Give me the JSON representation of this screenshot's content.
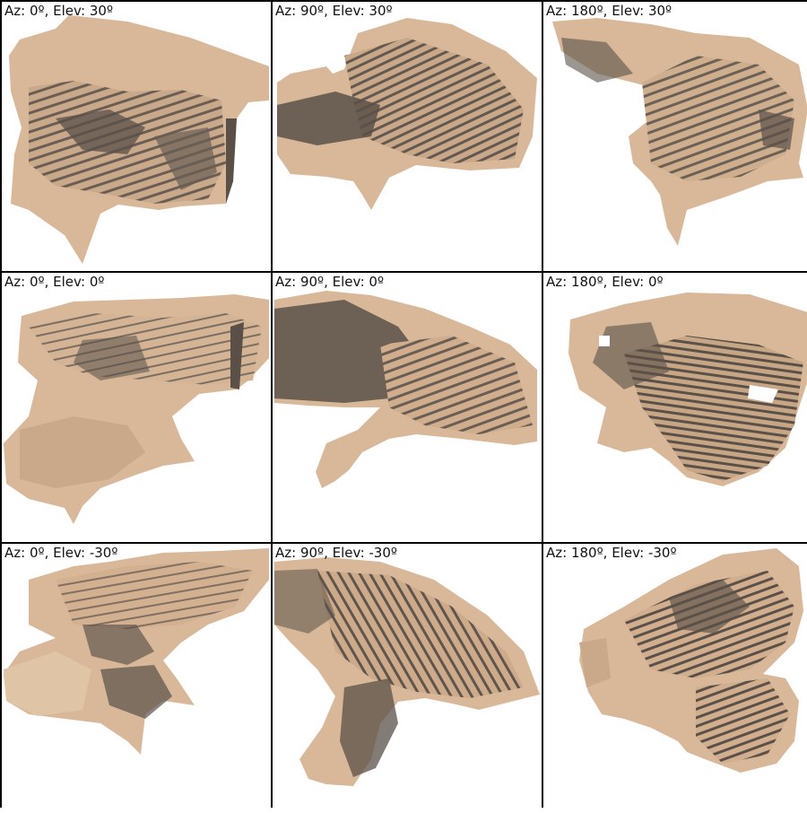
{
  "panels": [
    {
      "id": "p00",
      "label": "Az: 0º, Elev: 30º"
    },
    {
      "id": "p01",
      "label": "Az: 90º, Elev: 30º"
    },
    {
      "id": "p02",
      "label": "Az: 180º, Elev: 30º"
    },
    {
      "id": "p10",
      "label": "Az: 0º, Elev: 0º"
    },
    {
      "id": "p11",
      "label": "Az: 90º, Elev: 0º"
    },
    {
      "id": "p12",
      "label": "Az: 180º, Elev: 0º"
    },
    {
      "id": "p20",
      "label": "Az: 0º, Elev: -30º"
    },
    {
      "id": "p21",
      "label": "Az: 90º, Elev: -30º"
    },
    {
      "id": "p22",
      "label": "Az: 180º, Elev: -30º"
    }
  ],
  "colors": {
    "surface_light": "#d8b898",
    "surface_mid": "#b8987a",
    "surface_shadow": "#5a5048",
    "border": "#000000",
    "background": "#ffffff"
  }
}
